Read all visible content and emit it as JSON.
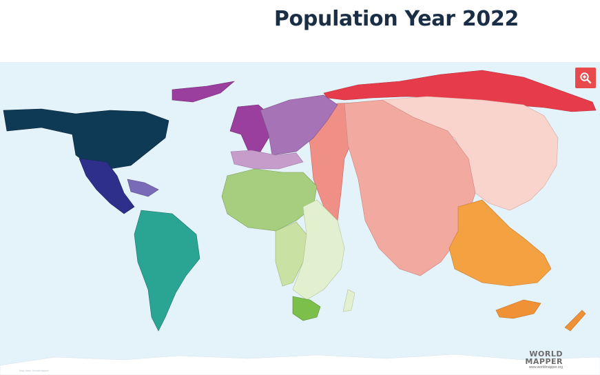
{
  "title": "Population Year 2022",
  "logo": {
    "line1": "WORLD",
    "line2": "MAPPER",
    "url": "www.worldmapper.org"
  },
  "credit": "Map data: Worldmapper",
  "zoom_icon": "zoom-in-icon",
  "colors": {
    "ocean": "#e4f2f9",
    "north_america": "#0f3a55",
    "central_america": "#2e2f8a",
    "caribbean": "#7a6bb8",
    "south_america": "#2aa593",
    "western_europe": "#9a3f9e",
    "eastern_europe": "#a773b7",
    "southern_europe": "#c59cca",
    "northern_africa": "#a7ce7e",
    "middle_africa": "#c9e2a3",
    "eastern_africa": "#e3f0cf",
    "southern_africa": "#7cc04b",
    "middle_east": "#f08f86",
    "south_asia": "#f2a9a0",
    "east_asia": "#f8d4cc",
    "russia": "#e53b4a",
    "southeast_asia": "#f3a141",
    "oceania": "#ef9134",
    "accent": "#e8494c"
  }
}
